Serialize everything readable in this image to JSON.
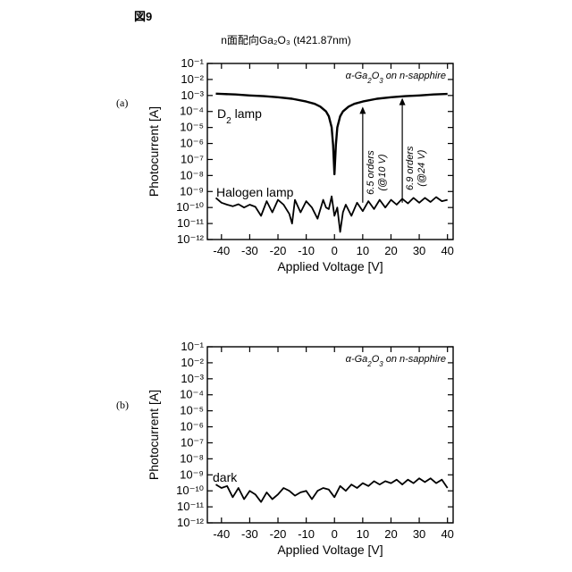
{
  "figure": {
    "label": "図9",
    "title": "n面配向Ga₂O₃ (t421.87nm)"
  },
  "chart_data": [
    {
      "panel": "(a)",
      "type": "line",
      "xlabel": "Applied Voltage [V]",
      "ylabel": "Photocurrent [A]",
      "xlim": [
        -45,
        42
      ],
      "xticks": [
        -40,
        -30,
        -20,
        -10,
        0,
        10,
        20,
        30,
        40
      ],
      "yscale": "log",
      "yticks_exp": [
        -1,
        -2,
        -3,
        -4,
        -5,
        -6,
        -7,
        -8,
        -9,
        -10,
        -11,
        -12
      ],
      "legend": "α-Ga₂O₃ on n-sapphire",
      "legend_position": "top-right",
      "series": [
        {
          "name": "D₂ lamp",
          "x": [
            -42,
            -40,
            -35,
            -30,
            -25,
            -20,
            -15,
            -10,
            -7,
            -5,
            -3,
            -2,
            -1,
            -0.5,
            0,
            0.5,
            1,
            2,
            3,
            5,
            7,
            10,
            15,
            20,
            25,
            30,
            35,
            40
          ],
          "y": [
            0.0013,
            0.00125,
            0.00115,
            0.001,
            0.0009,
            0.00078,
            0.00062,
            0.00042,
            0.0003,
            0.0002,
            0.0001,
            5e-05,
            1e-05,
            8e-07,
            1.2e-08,
            8e-07,
            1e-05,
            5e-05,
            0.0001,
            0.0002,
            0.0003,
            0.00042,
            0.00062,
            0.00078,
            0.0009,
            0.001,
            0.00115,
            0.00125
          ]
        },
        {
          "name": "Halogen lamp",
          "x": [
            -42,
            -40,
            -38,
            -36,
            -34,
            -32,
            -30,
            -28,
            -26,
            -24,
            -22,
            -20,
            -18,
            -16,
            -15,
            -14,
            -12,
            -10,
            -8,
            -6,
            -4,
            -3,
            -2,
            -1,
            0,
            1,
            2,
            3,
            4,
            6,
            8,
            10,
            12,
            14,
            16,
            18,
            20,
            22,
            24,
            26,
            28,
            30,
            32,
            34,
            36,
            38,
            40
          ],
          "y": [
            4e-10,
            2e-10,
            1.5e-10,
            1.2e-10,
            1.6e-10,
            1e-10,
            1.5e-10,
            1.1e-10,
            3e-11,
            2.5e-10,
            5e-11,
            3e-10,
            1.5e-10,
            4e-11,
            1e-11,
            3e-10,
            5e-11,
            2.5e-10,
            1e-10,
            2e-11,
            3e-10,
            1e-10,
            8e-11,
            5e-10,
            3e-11,
            1e-10,
            3e-12,
            5e-11,
            1.5e-10,
            3e-11,
            2e-10,
            6e-11,
            2.5e-10,
            8e-11,
            3e-10,
            1e-10,
            3e-10,
            1.5e-10,
            3.5e-10,
            1.8e-10,
            4e-10,
            2e-10,
            4e-10,
            2.2e-10,
            4.5e-10,
            2.5e-10,
            3e-10
          ]
        }
      ],
      "annotations": [
        {
          "text_line1": "6.5 orders",
          "text_line2": "(@10 V)",
          "x": 10,
          "y_from": 2e-10,
          "y_to": 0.0002
        },
        {
          "text_line1": "6.9 orders",
          "text_line2": "(@24 V)",
          "x": 24,
          "y_from": 2e-10,
          "y_to": 0.0007
        }
      ]
    },
    {
      "panel": "(b)",
      "type": "line",
      "xlabel": "Applied Voltage [V]",
      "ylabel": "Photocurrent [A]",
      "xlim": [
        -45,
        42
      ],
      "xticks": [
        -40,
        -30,
        -20,
        -10,
        0,
        10,
        20,
        30,
        40
      ],
      "yscale": "log",
      "yticks_exp": [
        -1,
        -2,
        -3,
        -4,
        -5,
        -6,
        -7,
        -8,
        -9,
        -10,
        -11,
        -12
      ],
      "legend": "α-Ga₂O₃ on n-sapphire",
      "legend_position": "top-right",
      "series": [
        {
          "name": "dark",
          "x": [
            -42,
            -40,
            -38,
            -36,
            -34,
            -32,
            -30,
            -28,
            -26,
            -24,
            -22,
            -20,
            -18,
            -16,
            -14,
            -12,
            -10,
            -8,
            -6,
            -4,
            -2,
            0,
            2,
            4,
            6,
            8,
            10,
            12,
            14,
            16,
            18,
            20,
            22,
            24,
            26,
            28,
            30,
            32,
            34,
            36,
            38,
            40
          ],
          "y": [
            2.5e-10,
            1.5e-10,
            2e-10,
            4e-11,
            1.5e-10,
            3e-11,
            1e-10,
            6e-11,
            2e-11,
            8e-11,
            3e-11,
            6e-11,
            1.5e-10,
            1e-10,
            5e-11,
            8e-11,
            1e-10,
            3e-11,
            1e-10,
            1.5e-10,
            1.2e-10,
            4e-11,
            2e-10,
            1e-10,
            2.5e-10,
            1.5e-10,
            3e-10,
            2e-10,
            4e-10,
            2.5e-10,
            4e-10,
            3e-10,
            5e-10,
            2.5e-10,
            5e-10,
            3e-10,
            6e-10,
            3.5e-10,
            6e-10,
            3e-10,
            5e-10,
            1.5e-10
          ]
        }
      ]
    }
  ]
}
